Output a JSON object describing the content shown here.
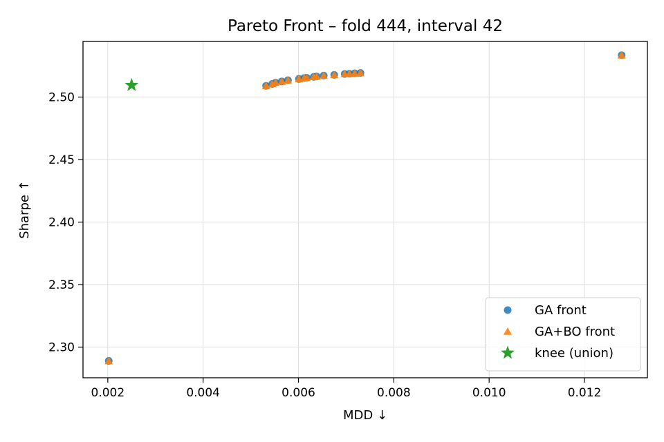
{
  "chart_data": {
    "type": "scatter",
    "title": "Pareto Front – fold 444, interval 42",
    "xlabel": "MDD ↓",
    "ylabel": "Sharpe ↑",
    "xlim": [
      0.00148,
      0.01332
    ],
    "ylim": [
      2.2755,
      2.5445
    ],
    "xticks": [
      0.002,
      0.004,
      0.006,
      0.008,
      0.01,
      0.012
    ],
    "xtick_labels": [
      "0.002",
      "0.004",
      "0.006",
      "0.008",
      "0.010",
      "0.012"
    ],
    "yticks": [
      2.3,
      2.35,
      2.4,
      2.45,
      2.5
    ],
    "ytick_labels": [
      "2.30",
      "2.35",
      "2.40",
      "2.45",
      "2.50"
    ],
    "grid": true,
    "legend_position": "lower-right",
    "series": [
      {
        "name": "GA front",
        "marker": "circle",
        "color": "#1f77b4",
        "points": [
          [
            0.00202,
            2.289
          ],
          [
            0.00532,
            2.509
          ],
          [
            0.00545,
            2.5105
          ],
          [
            0.00552,
            2.5115
          ],
          [
            0.00565,
            2.5125
          ],
          [
            0.00578,
            2.5135
          ],
          [
            0.00601,
            2.5145
          ],
          [
            0.00612,
            2.5152
          ],
          [
            0.00617,
            2.5155
          ],
          [
            0.00632,
            2.5162
          ],
          [
            0.00638,
            2.5165
          ],
          [
            0.00653,
            2.5172
          ],
          [
            0.00675,
            2.5178
          ],
          [
            0.00697,
            2.5185
          ],
          [
            0.00707,
            2.5187
          ],
          [
            0.00718,
            2.519
          ],
          [
            0.0073,
            2.5193
          ],
          [
            0.01278,
            2.5335
          ]
        ]
      },
      {
        "name": "GA+BO front",
        "marker": "triangle",
        "color": "#ff7f0e",
        "points": [
          [
            0.00202,
            2.289
          ],
          [
            0.00532,
            2.509
          ],
          [
            0.00545,
            2.5105
          ],
          [
            0.00552,
            2.5115
          ],
          [
            0.00565,
            2.5125
          ],
          [
            0.00578,
            2.5135
          ],
          [
            0.00601,
            2.5145
          ],
          [
            0.00612,
            2.5152
          ],
          [
            0.00617,
            2.5155
          ],
          [
            0.00632,
            2.5162
          ],
          [
            0.00638,
            2.5165
          ],
          [
            0.00653,
            2.5172
          ],
          [
            0.00675,
            2.5178
          ],
          [
            0.00697,
            2.5185
          ],
          [
            0.00707,
            2.5187
          ],
          [
            0.00718,
            2.519
          ],
          [
            0.0073,
            2.5193
          ],
          [
            0.01278,
            2.5335
          ]
        ]
      },
      {
        "name": "knee (union)",
        "marker": "star",
        "color": "#2ca02c",
        "points": [
          [
            0.0025,
            2.5095
          ]
        ]
      }
    ]
  }
}
